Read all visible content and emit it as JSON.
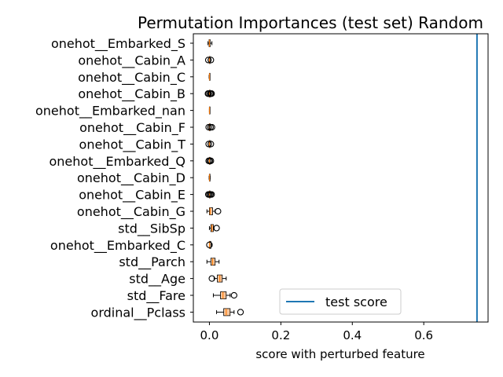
{
  "chart_data": {
    "type": "box",
    "title": "Permutation Importances (test set) Random",
    "xlabel": "score with perturbed feature",
    "ylabel": "",
    "xlim": [
      -0.045,
      0.78
    ],
    "x_ticks": [
      0.0,
      0.2,
      0.4,
      0.6
    ],
    "x_tick_labels": [
      "0.0",
      "0.2",
      "0.4",
      "0.6"
    ],
    "grid": false,
    "box_color": "#f5c59c",
    "median_color": "#ff7f0e",
    "reference_line": {
      "label": "test score",
      "x": 0.749,
      "color": "#1f77b4"
    },
    "legend": {
      "position": "lower-center",
      "entries": [
        "test score"
      ]
    },
    "categories": [
      "onehot__Embarked_S",
      "onehot__Cabin_A",
      "onehot__Cabin_C",
      "onehot__Cabin_B",
      "onehot__Embarked_nan",
      "onehot__Cabin_F",
      "onehot__Cabin_T",
      "onehot__Embarked_Q",
      "onehot__Cabin_D",
      "onehot__Cabin_E",
      "onehot__Cabin_G",
      "std__SibSp",
      "onehot__Embarked_C",
      "std__Parch",
      "std__Age",
      "std__Fare",
      "ordinal__Pclass"
    ],
    "boxes": [
      {
        "whislo": -0.004,
        "q1": -0.001,
        "med": 0.0,
        "q3": 0.002,
        "whishi": 0.007,
        "fliers": []
      },
      {
        "whislo": 0.0,
        "q1": 0.0,
        "med": 0.0,
        "q3": 0.0,
        "whishi": 0.0,
        "fliers": [
          -0.003,
          0.004
        ]
      },
      {
        "whislo": -0.001,
        "q1": 0.0,
        "med": 0.0,
        "q3": 0.0,
        "whishi": 0.001,
        "fliers": []
      },
      {
        "whislo": 0.0,
        "q1": 0.0,
        "med": 0.0,
        "q3": 0.0,
        "whishi": 0.0,
        "fliers": [
          -0.004,
          -0.002,
          0.002,
          0.004,
          0.006
        ]
      },
      {
        "whislo": 0.0,
        "q1": 0.0,
        "med": 0.0,
        "q3": 0.0,
        "whishi": 0.0,
        "fliers": []
      },
      {
        "whislo": 0.0,
        "q1": 0.0,
        "med": 0.0,
        "q3": 0.0,
        "whishi": 0.0,
        "fliers": [
          -0.002,
          0.003,
          0.007
        ]
      },
      {
        "whislo": 0.0,
        "q1": 0.0,
        "med": 0.0,
        "q3": 0.0,
        "whishi": 0.0,
        "fliers": [
          -0.002,
          0.004
        ]
      },
      {
        "whislo": 0.0,
        "q1": 0.0,
        "med": 0.0,
        "q3": 0.0,
        "whishi": 0.0,
        "fliers": [
          -0.002,
          0.001,
          0.004
        ]
      },
      {
        "whislo": -0.001,
        "q1": 0.0,
        "med": 0.0,
        "q3": 0.0,
        "whishi": 0.002,
        "fliers": []
      },
      {
        "whislo": 0.0,
        "q1": 0.0,
        "med": 0.0,
        "q3": 0.0,
        "whishi": 0.0,
        "fliers": [
          -0.003,
          0.0,
          0.003,
          0.006
        ]
      },
      {
        "whislo": -0.007,
        "q1": 0.0,
        "med": 0.002,
        "q3": 0.009,
        "whishi": 0.016,
        "fliers": [
          0.024
        ]
      },
      {
        "whislo": 0.0,
        "q1": 0.004,
        "med": 0.007,
        "q3": 0.011,
        "whishi": 0.013,
        "fliers": [
          0.02
        ]
      },
      {
        "whislo": 0.0,
        "q1": 0.0,
        "med": 0.0,
        "q3": 0.004,
        "whishi": 0.007,
        "fliers": [
          0.0
        ]
      },
      {
        "whislo": -0.007,
        "q1": 0.004,
        "med": 0.009,
        "q3": 0.016,
        "whishi": 0.027,
        "fliers": []
      },
      {
        "whislo": 0.013,
        "q1": 0.022,
        "med": 0.029,
        "q3": 0.036,
        "whishi": 0.047,
        "fliers": [
          0.007
        ]
      },
      {
        "whislo": 0.011,
        "q1": 0.031,
        "med": 0.038,
        "q3": 0.047,
        "whishi": 0.058,
        "fliers": [
          0.069
        ]
      },
      {
        "whislo": 0.02,
        "q1": 0.04,
        "med": 0.047,
        "q3": 0.058,
        "whishi": 0.069,
        "fliers": [
          0.087
        ]
      }
    ]
  }
}
